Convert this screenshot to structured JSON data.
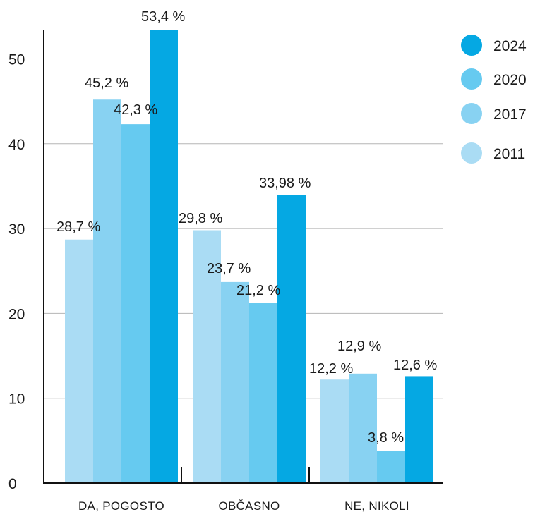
{
  "chart_data": {
    "type": "bar",
    "title": "",
    "xlabel": "",
    "ylabel": "",
    "ylim": [
      0,
      55
    ],
    "yticks": [
      0,
      10,
      20,
      30,
      40,
      50
    ],
    "grid": true,
    "legend_position": "top-right",
    "categories": [
      "DA, POGOSTO",
      "OBČASNO",
      "NE, NIKOLI"
    ],
    "series": [
      {
        "name": "2011",
        "color": "#aadcf4",
        "values": [
          28.7,
          29.8,
          12.2
        ],
        "labels": [
          "28,7 %",
          "29,8 %",
          "12,2 %"
        ]
      },
      {
        "name": "2017",
        "color": "#88d2f2",
        "values": [
          45.2,
          23.7,
          12.9
        ],
        "labels": [
          "45,2 %",
          "23,7 %",
          "12,9 %"
        ]
      },
      {
        "name": "2020",
        "color": "#66caf0",
        "values": [
          42.3,
          21.2,
          3.8
        ],
        "labels": [
          "42,3 %",
          "21,2 %",
          "3,8 %"
        ]
      },
      {
        "name": "2024",
        "color": "#05a8e3",
        "values": [
          53.4,
          33.98,
          12.6
        ],
        "labels": [
          "53,4 %",
          "33,98 %",
          "12,6 %"
        ]
      }
    ],
    "legend_order": [
      "2024",
      "2020",
      "2017",
      "2011"
    ]
  }
}
